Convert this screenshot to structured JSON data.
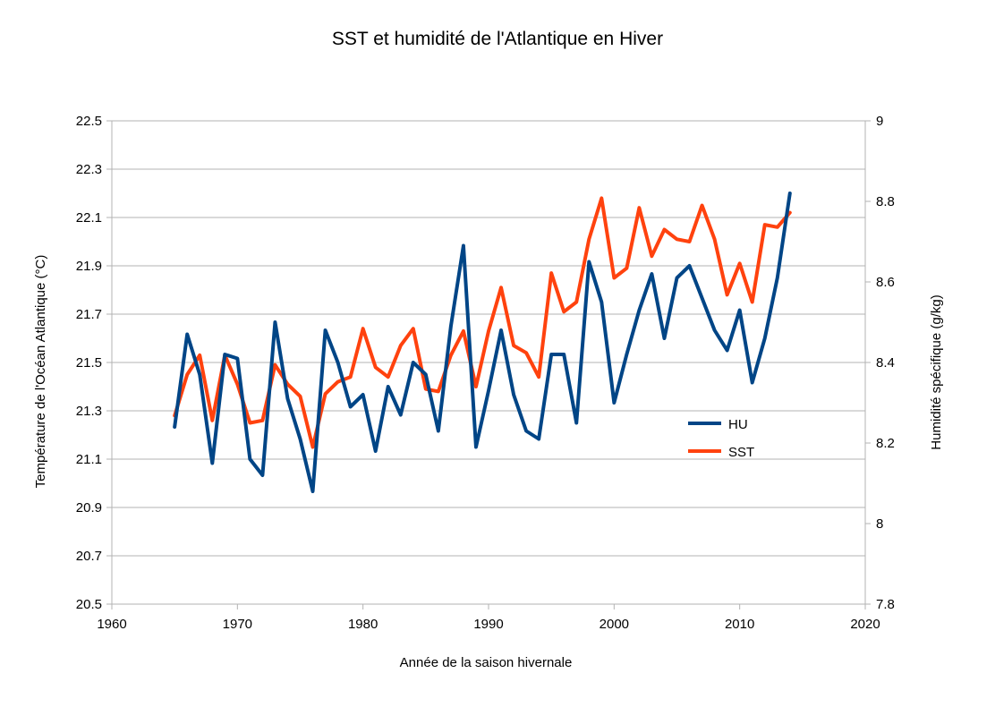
{
  "chart_data": {
    "type": "line",
    "title": "SST et humidité de l'Atlantique en Hiver",
    "xlabel": "Année de la saison hivernale",
    "ylabel_left": "Température de l'Océan Atlantique (°C)",
    "ylabel_right": "Humidité spécifique (g/kg)",
    "xlim": [
      1960,
      2020
    ],
    "ylim_left": [
      20.5,
      22.5
    ],
    "ylim_right": [
      7.8,
      9.0
    ],
    "x_ticks": [
      "1960",
      "1970",
      "1980",
      "1990",
      "2000",
      "2010",
      "2020"
    ],
    "y_ticks_left": [
      "20.5",
      "20.7",
      "20.9",
      "21.1",
      "21.3",
      "21.5",
      "21.7",
      "21.9",
      "22.1",
      "22.3",
      "22.5"
    ],
    "y_ticks_right": [
      "7.8",
      "8",
      "8.2",
      "8.4",
      "8.6",
      "8.8",
      "9"
    ],
    "grid": true,
    "legend_position": "right-center",
    "x": [
      1965,
      1966,
      1967,
      1968,
      1969,
      1970,
      1971,
      1972,
      1973,
      1974,
      1975,
      1976,
      1977,
      1978,
      1979,
      1980,
      1981,
      1982,
      1983,
      1984,
      1985,
      1986,
      1987,
      1988,
      1989,
      1990,
      1991,
      1992,
      1993,
      1994,
      1995,
      1996,
      1997,
      1998,
      1999,
      2000,
      2001,
      2002,
      2003,
      2004,
      2005,
      2006,
      2007,
      2008,
      2009,
      2010,
      2011,
      2012,
      2013,
      2014
    ],
    "series": [
      {
        "name": "HU",
        "axis": "right",
        "color": "#004586",
        "values": [
          8.24,
          8.47,
          8.37,
          8.15,
          8.42,
          8.41,
          8.16,
          8.12,
          8.5,
          8.31,
          8.21,
          8.08,
          8.48,
          8.4,
          8.29,
          8.32,
          8.18,
          8.34,
          8.27,
          8.4,
          8.37,
          8.23,
          8.49,
          8.69,
          8.19,
          8.33,
          8.48,
          8.32,
          8.23,
          8.21,
          8.42,
          8.42,
          8.25,
          8.65,
          8.55,
          8.3,
          8.42,
          8.53,
          8.62,
          8.46,
          8.61,
          8.64,
          8.56,
          8.48,
          8.43,
          8.53,
          8.35,
          8.46,
          8.61,
          8.82
        ]
      },
      {
        "name": "SST",
        "axis": "left",
        "color": "#ff420e",
        "values": [
          21.28,
          21.45,
          21.53,
          21.26,
          21.53,
          21.41,
          21.25,
          21.26,
          21.49,
          21.41,
          21.36,
          21.15,
          21.37,
          21.42,
          21.44,
          21.64,
          21.48,
          21.44,
          21.57,
          21.64,
          21.39,
          21.38,
          21.53,
          21.63,
          21.4,
          21.63,
          21.81,
          21.57,
          21.54,
          21.44,
          21.87,
          21.71,
          21.75,
          22.01,
          22.18,
          21.85,
          21.89,
          22.14,
          21.94,
          22.05,
          22.01,
          22.0,
          22.15,
          22.01,
          21.78,
          21.91,
          21.75,
          22.07,
          22.06,
          22.12
        ]
      }
    ]
  }
}
